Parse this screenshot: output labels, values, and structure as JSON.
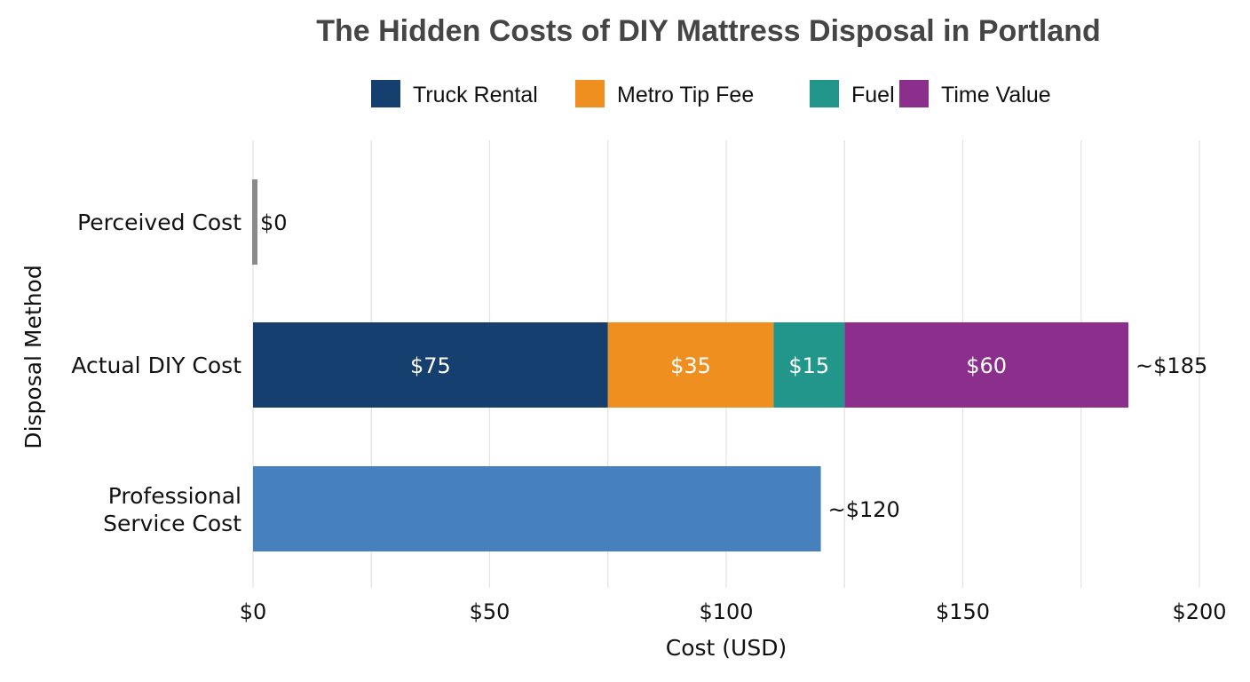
{
  "chart_data": {
    "type": "bar",
    "orientation": "horizontal",
    "stacked": true,
    "title": "The Hidden Costs of DIY Mattress Disposal in Portland",
    "xlabel": "Cost (USD)",
    "ylabel": "Disposal Method",
    "xlim": [
      0,
      200
    ],
    "xticks": [
      0,
      50,
      100,
      150,
      200
    ],
    "xtick_labels": [
      "$0",
      "$50",
      "$100",
      "$150",
      "$200"
    ],
    "grid": true,
    "legend_position": "top",
    "categories": [
      "Perceived Cost",
      "Actual DIY Cost",
      "Professional\nService Cost"
    ],
    "legend": [
      {
        "name": "Truck Rental",
        "color": "#143f6e"
      },
      {
        "name": "Metro Tip Fee",
        "color": "#ef8f1f"
      },
      {
        "name": "Fuel",
        "color": "#22968a"
      },
      {
        "name": "Time Value",
        "color": "#8c2f8c"
      }
    ],
    "bars": [
      {
        "category": "Perceived Cost",
        "segments": [
          {
            "value": 0,
            "color": "#8a8a8a"
          }
        ],
        "total_label": "$0"
      },
      {
        "category": "Actual DIY Cost",
        "segments": [
          {
            "name": "Truck Rental",
            "value": 75,
            "label": "$75",
            "color": "#143f6e"
          },
          {
            "name": "Metro Tip Fee",
            "value": 35,
            "label": "$35",
            "color": "#ef8f1f"
          },
          {
            "name": "Fuel",
            "value": 15,
            "label": "$15",
            "color": "#22968a"
          },
          {
            "name": "Time Value",
            "value": 60,
            "label": "$60",
            "color": "#8c2f8c"
          }
        ],
        "total_label": "~$185"
      },
      {
        "category": "Professional\nService Cost",
        "segments": [
          {
            "value": 120,
            "color": "#4680bd"
          }
        ],
        "total_label": "~$120"
      }
    ]
  }
}
